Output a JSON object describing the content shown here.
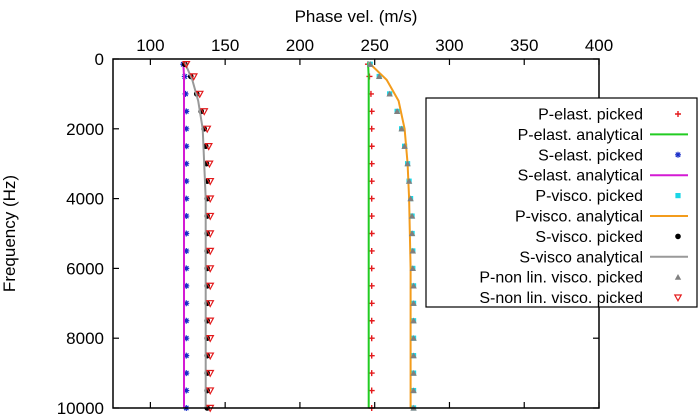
{
  "chart_data": {
    "type": "line",
    "title": "",
    "xlabel": "Phase vel. (m/s)",
    "ylabel": "Frequency (Hz)",
    "x_axis_position": "top",
    "y_axis_inverted": true,
    "xlim": [
      75,
      400
    ],
    "ylim": [
      0,
      10000
    ],
    "x_ticks": [
      100,
      150,
      200,
      250,
      300,
      350,
      400
    ],
    "x_tick_labels": [
      "100",
      "150",
      "200",
      "250",
      "300",
      "350",
      "400"
    ],
    "y_ticks": [
      0,
      2000,
      4000,
      6000,
      8000,
      10000
    ],
    "y_tick_labels": [
      "0",
      "2000",
      "4000",
      "6000",
      "8000",
      "10000"
    ],
    "grid": false,
    "legend_position": "right",
    "series": [
      {
        "name": "P-elast. picked",
        "style": "points",
        "marker": "plus",
        "color": "#e41a1c",
        "x": [
          245.5,
          246.5,
          247.5,
          248,
          248,
          248,
          248,
          248,
          248,
          248,
          248,
          248,
          248,
          248,
          248,
          248,
          248,
          248,
          248,
          248,
          248
        ],
        "y": [
          150,
          500,
          1000,
          1500,
          2000,
          2500,
          3000,
          3500,
          4000,
          4500,
          5000,
          5500,
          6000,
          6500,
          7000,
          7500,
          8000,
          8500,
          9000,
          9500,
          10000
        ]
      },
      {
        "name": "P-elast. analytical",
        "style": "line",
        "color": "#22cc22",
        "x": [
          245.5,
          246,
          246,
          246,
          246,
          246,
          246
        ],
        "y": [
          100,
          500,
          1000,
          2000,
          4000,
          7000,
          10000
        ]
      },
      {
        "name": "S-elast. picked",
        "style": "points",
        "marker": "star",
        "color": "#1a2ec8",
        "x": [
          122,
          123,
          123.5,
          124,
          124,
          124,
          124,
          124,
          124,
          124,
          124,
          124,
          124,
          124,
          124,
          124,
          124,
          124,
          124,
          124,
          124
        ],
        "y": [
          150,
          500,
          1000,
          1500,
          2000,
          2500,
          3000,
          3500,
          4000,
          4500,
          5000,
          5500,
          6000,
          6500,
          7000,
          7500,
          8000,
          8500,
          9000,
          9500,
          10000
        ]
      },
      {
        "name": "S-elast. analytical",
        "style": "line",
        "color": "#d41ad4",
        "x": [
          122,
          122.5,
          122.5,
          122.5,
          122.5,
          122.5,
          122.5
        ],
        "y": [
          100,
          500,
          1000,
          2000,
          4000,
          7000,
          10000
        ]
      },
      {
        "name": "P-visco. picked",
        "style": "points",
        "marker": "square",
        "color": "#1ad6e6",
        "x": [
          247,
          253,
          260,
          265,
          268,
          270,
          272,
          273,
          274,
          275,
          275,
          275.5,
          275.5,
          276,
          276,
          276,
          276,
          276,
          276,
          276,
          276
        ],
        "y": [
          150,
          500,
          1000,
          1500,
          2000,
          2500,
          3000,
          3500,
          4000,
          4500,
          5000,
          5500,
          6000,
          6500,
          7000,
          7500,
          8000,
          8500,
          9000,
          9500,
          10000
        ]
      },
      {
        "name": "P-visco. analytical",
        "style": "line",
        "color": "#f39c1c",
        "x": [
          246,
          258,
          266,
          270,
          272,
          273,
          274,
          274,
          274
        ],
        "y": [
          100,
          600,
          1200,
          2000,
          3000,
          4000,
          6000,
          8000,
          10000
        ]
      },
      {
        "name": "S-visco. picked",
        "style": "points",
        "marker": "circle",
        "color": "#000000",
        "x": [
          123,
          127,
          131,
          134,
          136,
          137,
          137.5,
          138,
          138,
          138,
          138,
          138,
          138,
          138,
          138,
          138,
          138,
          138,
          138,
          138,
          138
        ],
        "y": [
          150,
          500,
          1000,
          1500,
          2000,
          2500,
          3000,
          3500,
          4000,
          4500,
          5000,
          5500,
          6000,
          6500,
          7000,
          7500,
          8000,
          8500,
          9000,
          9500,
          10000
        ]
      },
      {
        "name": "S-visco analytical",
        "style": "line",
        "color": "#999999",
        "x": [
          123,
          128,
          132,
          135,
          136,
          137,
          137,
          137,
          137
        ],
        "y": [
          100,
          600,
          1200,
          2000,
          3000,
          4000,
          6000,
          8000,
          10000
        ]
      },
      {
        "name": "P-non lin. visco. picked",
        "style": "points",
        "marker": "triangle-up",
        "color": "#808080",
        "x": [
          247,
          253,
          260,
          265,
          268,
          270,
          272,
          273,
          274,
          275,
          275,
          275.5,
          275.5,
          276,
          276,
          276,
          276,
          276,
          276,
          276,
          276
        ],
        "y": [
          150,
          500,
          1000,
          1500,
          2000,
          2500,
          3000,
          3500,
          4000,
          4500,
          5000,
          5500,
          6000,
          6500,
          7000,
          7500,
          8000,
          8500,
          9000,
          9500,
          10000
        ]
      },
      {
        "name": "S-non lin. visco. picked",
        "style": "points",
        "marker": "triangle-down",
        "color": "#e41a1c",
        "x": [
          124,
          129,
          133,
          136,
          138,
          139,
          139.5,
          140,
          140,
          140,
          140,
          140,
          140,
          140,
          140,
          140,
          140,
          140,
          140,
          140,
          140
        ],
        "y": [
          150,
          500,
          1000,
          1500,
          2000,
          2500,
          3000,
          3500,
          4000,
          4500,
          5000,
          5500,
          6000,
          6500,
          7000,
          7500,
          8000,
          8500,
          9000,
          9500,
          10000
        ]
      }
    ]
  }
}
